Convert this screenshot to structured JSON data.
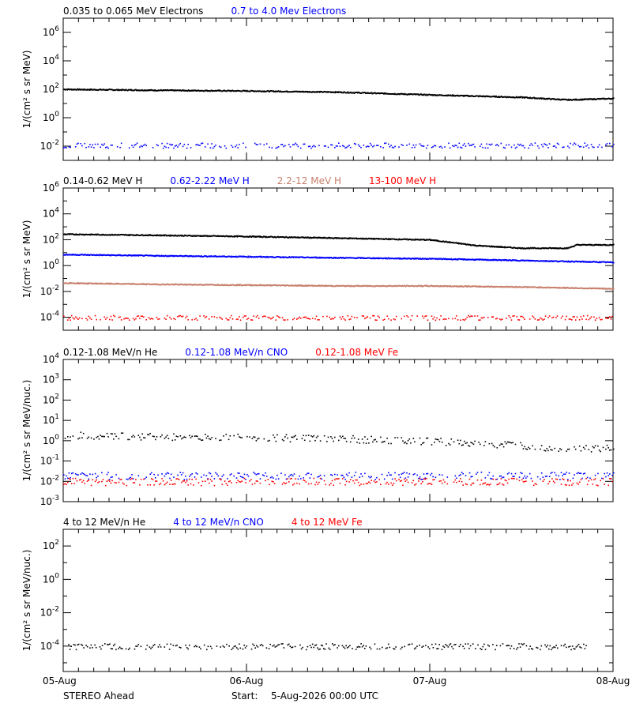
{
  "footer": {
    "left": "STEREO Ahead",
    "start_label": "Start:",
    "start_value": "5-Aug-2026 00:00 UTC"
  },
  "x_axis": {
    "ticks": [
      "05-Aug",
      "06-Aug",
      "07-Aug",
      "08-Aug"
    ],
    "range_days": [
      0,
      3
    ]
  },
  "colors": {
    "black": "#000000",
    "blue": "#0000ff",
    "tan": "#c87f6c",
    "red": "#ff0000"
  },
  "chart_data": [
    {
      "type": "scatter",
      "ylabel": "1/(cm² s sr MeV)",
      "scale": "log",
      "ylim": [
        0.001,
        10000000
      ],
      "ytick_exponents": [
        -2,
        0,
        2,
        4,
        6
      ],
      "legend": [
        {
          "name": "0.035 to 0.065 MeV Electrons",
          "color": "#000000"
        },
        {
          "name": "0.7 to 4.0 Mev Electrons",
          "color": "#0000ff"
        }
      ],
      "series": [
        {
          "name": "0.035 to 0.065 MeV Electrons",
          "color": "#000000",
          "style": "line",
          "x": [
            0,
            0.5,
            1.0,
            1.5,
            2.0,
            2.5,
            2.75,
            3.0
          ],
          "y": [
            110,
            95,
            85,
            70,
            45,
            30,
            20,
            25
          ]
        },
        {
          "name": "0.7 to 4.0 Mev Electrons",
          "color": "#0000ff",
          "style": "points",
          "x": [
            0,
            3
          ],
          "y": [
            0.012,
            0.012
          ]
        }
      ]
    },
    {
      "type": "scatter",
      "ylabel": "1/(cm² s sr MeV)",
      "scale": "log",
      "ylim": [
        1e-05,
        1000000
      ],
      "ytick_exponents": [
        -4,
        -2,
        0,
        2,
        4,
        6
      ],
      "legend": [
        {
          "name": "0.14-0.62 MeV H",
          "color": "#000000"
        },
        {
          "name": "0.62-2.22 MeV H",
          "color": "#0000ff"
        },
        {
          "name": "2.2-12 MeV H",
          "color": "#c87f6c"
        },
        {
          "name": "13-100 MeV H",
          "color": "#ff0000"
        }
      ],
      "series": [
        {
          "name": "0.14-0.62 MeV H",
          "color": "#000000",
          "style": "line",
          "x": [
            0,
            0.5,
            1.0,
            1.5,
            2.0,
            2.25,
            2.5,
            2.75,
            2.8,
            3.0
          ],
          "y": [
            300,
            250,
            200,
            150,
            110,
            40,
            25,
            25,
            45,
            45
          ]
        },
        {
          "name": "0.62-2.22 MeV H",
          "color": "#0000ff",
          "style": "line",
          "x": [
            0,
            0.5,
            1.0,
            1.5,
            2.0,
            2.5,
            3.0
          ],
          "y": [
            8,
            6.5,
            5.5,
            4.5,
            3.8,
            2.8,
            2.0
          ]
        },
        {
          "name": "2.2-12 MeV H",
          "color": "#c87f6c",
          "style": "line",
          "x": [
            0,
            0.5,
            1.0,
            1.5,
            2.0,
            2.5,
            3.0
          ],
          "y": [
            0.05,
            0.04,
            0.035,
            0.03,
            0.03,
            0.025,
            0.018
          ]
        },
        {
          "name": "13-100 MeV H",
          "color": "#ff0000",
          "style": "points",
          "x": [
            0,
            3
          ],
          "y": [
            0.0001,
            0.0001
          ]
        }
      ]
    },
    {
      "type": "scatter",
      "ylabel": "1/(cm² s sr MeV/nuc.)",
      "scale": "log",
      "ylim": [
        0.001,
        10000
      ],
      "ytick_exponents": [
        -3,
        -2,
        -1,
        0,
        1,
        2,
        3,
        4
      ],
      "legend": [
        {
          "name": "0.12-1.08 MeV/n He",
          "color": "#000000"
        },
        {
          "name": "0.12-1.08 MeV/n CNO",
          "color": "#0000ff"
        },
        {
          "name": "0.12-1.08 MeV Fe",
          "color": "#ff0000"
        }
      ],
      "series": [
        {
          "name": "0.12-1.08 MeV/n He",
          "color": "#000000",
          "style": "points",
          "x": [
            0,
            0.5,
            1.0,
            1.5,
            2.0,
            2.5,
            2.75,
            3.0
          ],
          "y": [
            2.0,
            1.7,
            1.5,
            1.3,
            1.0,
            0.6,
            0.4,
            0.45
          ]
        },
        {
          "name": "0.12-1.08 MeV/n CNO",
          "color": "#0000ff",
          "style": "points",
          "x": [
            0,
            3
          ],
          "y": [
            0.02,
            0.02
          ]
        },
        {
          "name": "0.12-1.08 MeV Fe",
          "color": "#ff0000",
          "style": "points",
          "x": [
            0,
            3
          ],
          "y": [
            0.01,
            0.01
          ]
        }
      ]
    },
    {
      "type": "scatter",
      "ylabel": "1/(cm² s sr MeV/nuc.)",
      "scale": "log",
      "ylim": [
        3e-06,
        1000
      ],
      "ytick_exponents": [
        -4,
        -2,
        0,
        2
      ],
      "legend": [
        {
          "name": "4 to 12 MeV/n He",
          "color": "#000000"
        },
        {
          "name": "4 to 12 MeV/n CNO",
          "color": "#0000ff"
        },
        {
          "name": "4 to 12 MeV Fe",
          "color": "#ff0000"
        }
      ],
      "series": [
        {
          "name": "4 to 12 MeV/n He",
          "color": "#000000",
          "style": "points",
          "x": [
            0,
            2.85
          ],
          "y": [
            0.0001,
            0.0001
          ]
        }
      ]
    }
  ]
}
